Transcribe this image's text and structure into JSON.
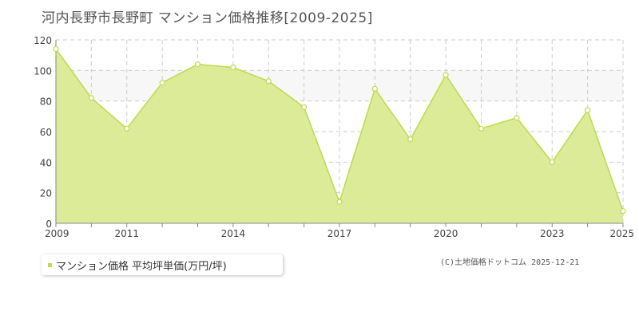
{
  "page": {
    "title": "河内長野市長野町 マンション価格推移[2009-2025]",
    "credit": "(C)土地価格ドットコム 2025-12-21"
  },
  "legend": {
    "label": "マンション価格 平均坪単価(万円/坪)"
  },
  "colors": {
    "fill": "#dbeb98",
    "line": "#bcdc4a",
    "band": "#f7f7f7",
    "grid": "#cccccc",
    "axis": "#888888",
    "tick_text": "#444444"
  },
  "chart_data": {
    "type": "area",
    "title": "河内長野市長野町 マンション価格推移[2009-2025]",
    "xlabel": "",
    "ylabel": "",
    "x": [
      2009,
      2010,
      2011,
      2012,
      2013,
      2014,
      2015,
      2016,
      2017,
      2018,
      2019,
      2020,
      2021,
      2022,
      2023,
      2024,
      2025
    ],
    "series": [
      {
        "name": "マンション価格 平均坪単価(万円/坪)",
        "values": [
          114,
          82,
          62,
          92,
          104,
          102,
          93,
          76,
          14,
          88,
          55,
          97,
          62,
          69,
          40,
          74,
          8
        ]
      }
    ],
    "xlim": [
      2009,
      2025
    ],
    "ylim": [
      0,
      120
    ],
    "yticks": [
      0,
      20,
      40,
      60,
      80,
      100,
      120
    ],
    "xtick_labels": [
      2009,
      2011,
      2014,
      2017,
      2020,
      2023,
      2025
    ],
    "grid": true,
    "band": [
      80,
      100
    ],
    "legend_position": "bottom-left"
  }
}
